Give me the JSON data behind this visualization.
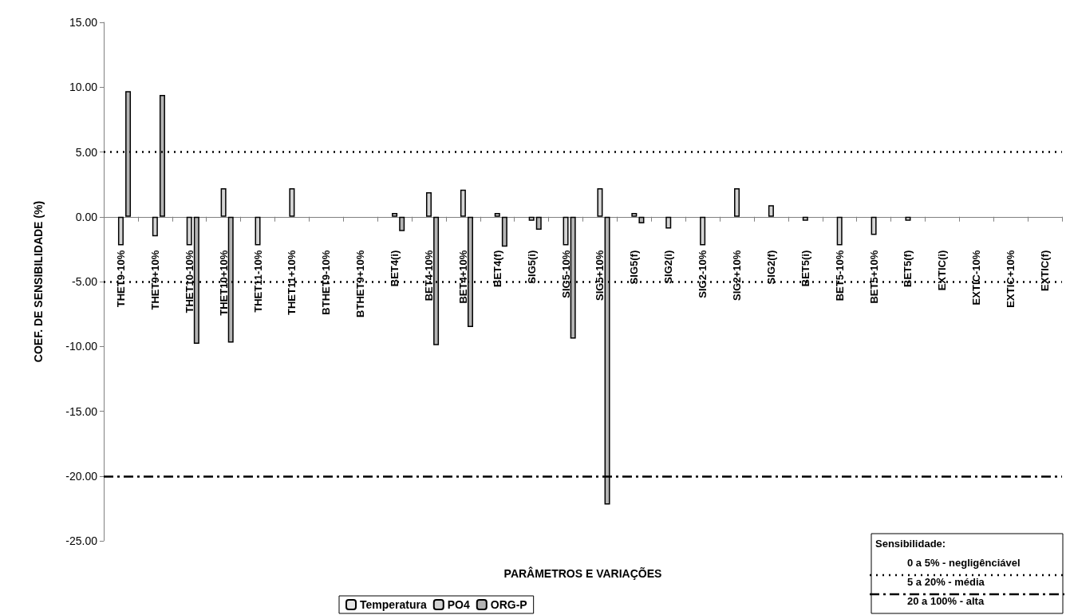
{
  "chart_data": {
    "type": "bar",
    "xlabel": "PARÂMETROS E VARIAÇÕES",
    "ylabel": "COEF. DE SENSIBILIDADE (%)",
    "categories": [
      "THET9-10%",
      "THET9+10%",
      "THET10-10%",
      "THET10+10%",
      "THET11-10%",
      "THET11+10%",
      "BTHET9-10%",
      "BTHET9+10%",
      "BET4(i)",
      "BET4-10%",
      "BET4+10%",
      "BET4(f)",
      "SIG5(i)",
      "SIG5-10%",
      "SIG5+10%",
      "SIG5(f)",
      "SIG2(i)",
      "SIG2-10%",
      "SIG2+10%",
      "SIG2(f)",
      "BET5(i)",
      "BET5-10%",
      "BET5+10%",
      "BET5(f)",
      "EXTIC(i)",
      "EXTIC-10%",
      "EXTIC+10%",
      "EXTIC(f)"
    ],
    "series": [
      {
        "name": "Temperatura",
        "color": "#e6e6e6",
        "values": [
          0,
          0,
          0,
          0,
          0,
          0,
          0,
          0,
          0,
          0,
          0,
          0,
          0,
          0,
          0,
          0,
          0,
          0,
          0,
          0,
          0,
          0,
          0,
          0,
          0,
          0,
          0,
          0
        ]
      },
      {
        "name": "PO4",
        "color": "#d4d4d4",
        "values": [
          -2.2,
          -1.5,
          -2.2,
          2.2,
          -2.2,
          2.2,
          0,
          0,
          0.3,
          1.9,
          2.1,
          0.3,
          -0.3,
          -2.2,
          2.2,
          0.3,
          -0.9,
          -2.2,
          2.2,
          0.9,
          -0.3,
          -2.2,
          -1.4,
          -0.3,
          0,
          0,
          0,
          0
        ]
      },
      {
        "name": "ORG-P",
        "color": "#b4b4b4",
        "values": [
          9.7,
          9.4,
          -9.8,
          -9.7,
          0,
          0,
          0,
          0,
          -1.1,
          -9.9,
          -8.5,
          -2.3,
          -1.0,
          -9.4,
          -22.2,
          -0.5,
          0,
          0,
          0,
          0,
          0,
          0,
          0,
          0,
          0,
          0,
          0,
          0
        ]
      }
    ],
    "ylim": [
      -25,
      15
    ],
    "yticks": [
      {
        "value": -25,
        "label": "-25.00"
      },
      {
        "value": -20,
        "label": "-20.00"
      },
      {
        "value": -15,
        "label": "-15.00"
      },
      {
        "value": -10,
        "label": "-10.00"
      },
      {
        "value": -5,
        "label": "-5.00"
      },
      {
        "value": 0,
        "label": "0.00"
      },
      {
        "value": 5,
        "label": "5.00"
      },
      {
        "value": 10,
        "label": "10.00"
      },
      {
        "value": 15,
        "label": "15.00"
      }
    ],
    "ref_lines": [
      {
        "axis": "y",
        "value": 5,
        "color": "#000000",
        "line_style": "dotted"
      },
      {
        "axis": "y",
        "value": -5,
        "color": "#000000",
        "line_style": "dotted"
      },
      {
        "axis": "y",
        "value": -20,
        "color": "#000000",
        "line_style": "dashdot"
      }
    ],
    "annotations": [
      "Sensibilidade:",
      "0 a 5% - negligênciável",
      "5 a 20% - média",
      "20 a 100% - alta"
    ],
    "grid": false,
    "legend": "bottom"
  }
}
